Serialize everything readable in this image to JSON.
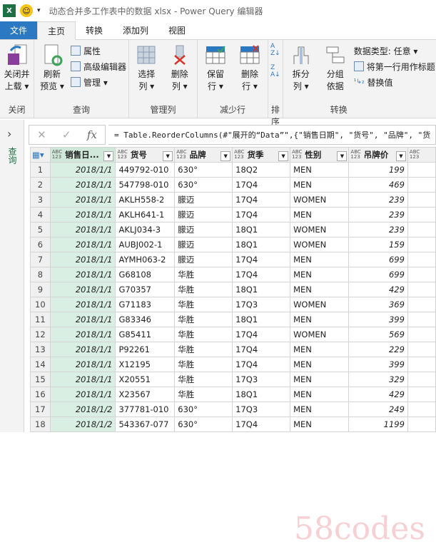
{
  "titlebar": {
    "app_icon": "X",
    "title": "动态合并多工作表中的数据 xlsx - Power Query 编辑器"
  },
  "tabs": [
    "文件",
    "主页",
    "转换",
    "添加列",
    "视图"
  ],
  "ribbon": {
    "close": {
      "button": "关闭并\n上载 ▾",
      "label": "关闭"
    },
    "query": {
      "refresh": "刷新\n预览 ▾",
      "properties": "属性",
      "advanced": "高级编辑器",
      "manage": "管理 ▾",
      "label": "查询"
    },
    "columns": {
      "choose": "选择\n列 ▾",
      "remove": "删除\n列 ▾",
      "label": "管理列"
    },
    "rows": {
      "keep": "保留\n行 ▾",
      "remove": "删除\n行 ▾",
      "label": "减少行"
    },
    "sort": {
      "label": "排序"
    },
    "transform": {
      "split": "拆分\n列 ▾",
      "group": "分组\n依据",
      "datatype": "数据类型: 任意 ▾",
      "first_row": "将第一行用作标题",
      "replace": "替换值",
      "label": "转换"
    }
  },
  "sidebar": {
    "label": "查询"
  },
  "formula": "= Table.ReorderColumns(#\"展开的“Data”\",{\"销售日期\", \"货号\", \"品牌\", \"货",
  "table": {
    "type_tag": "ABC 123",
    "columns": [
      "销售日...",
      "货号",
      "品牌",
      "货季",
      "性别",
      "吊牌价",
      ""
    ],
    "rows": [
      [
        "2018/1/1",
        "449792-010",
        "630°",
        "18Q2",
        "MEN",
        "199"
      ],
      [
        "2018/1/1",
        "547798-010",
        "630°",
        "17Q4",
        "MEN",
        "469"
      ],
      [
        "2018/1/1",
        "AKLH558-2",
        "朦迈",
        "17Q4",
        "WOMEN",
        "239"
      ],
      [
        "2018/1/1",
        "AKLH641-1",
        "朦迈",
        "17Q4",
        "MEN",
        "239"
      ],
      [
        "2018/1/1",
        "AKLJ034-3",
        "朦迈",
        "18Q1",
        "WOMEN",
        "239"
      ],
      [
        "2018/1/1",
        "AUBJ002-1",
        "朦迈",
        "18Q1",
        "WOMEN",
        "159"
      ],
      [
        "2018/1/1",
        "AYMH063-2",
        "朦迈",
        "17Q4",
        "MEN",
        "699"
      ],
      [
        "2018/1/1",
        "G68108",
        "华胜",
        "17Q4",
        "MEN",
        "699"
      ],
      [
        "2018/1/1",
        "G70357",
        "华胜",
        "18Q1",
        "MEN",
        "429"
      ],
      [
        "2018/1/1",
        "G71183",
        "华胜",
        "17Q3",
        "WOMEN",
        "369"
      ],
      [
        "2018/1/1",
        "G83346",
        "华胜",
        "18Q1",
        "MEN",
        "399"
      ],
      [
        "2018/1/1",
        "G85411",
        "华胜",
        "17Q4",
        "WOMEN",
        "569"
      ],
      [
        "2018/1/1",
        "P92261",
        "华胜",
        "17Q4",
        "MEN",
        "229"
      ],
      [
        "2018/1/1",
        "X12195",
        "华胜",
        "17Q4",
        "MEN",
        "399"
      ],
      [
        "2018/1/1",
        "X20551",
        "华胜",
        "17Q3",
        "MEN",
        "329"
      ],
      [
        "2018/1/1",
        "X23567",
        "华胜",
        "18Q1",
        "MEN",
        "429"
      ],
      [
        "2018/1/2",
        "377781-010",
        "630°",
        "17Q3",
        "MEN",
        "249"
      ],
      [
        "2018/1/2",
        "543367-077",
        "630°",
        "17Q4",
        "MEN",
        "1199"
      ]
    ]
  },
  "watermark": "58codes",
  "colors": {
    "file_tab": "#2b79c2",
    "selected_column": "#d9efe3",
    "excel_green": "#217346"
  }
}
